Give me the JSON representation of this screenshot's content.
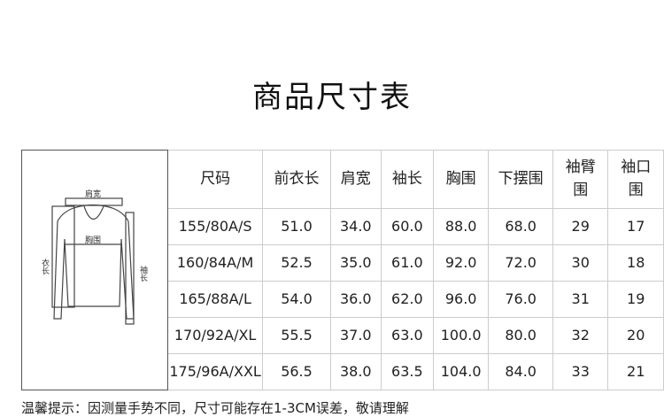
{
  "title": "商品尺寸表",
  "diagram": {
    "labels": {
      "shoulder": "肩宽",
      "chest": "胸围",
      "length": "衣长",
      "sleeve": "袖长"
    }
  },
  "table": {
    "headers": [
      "尺码",
      "前衣长",
      "肩宽",
      "袖长",
      "胸围",
      "下摆围",
      "袖臂围",
      "袖口围"
    ],
    "rows": [
      [
        "155/80A/S",
        "51.0",
        "34.0",
        "60.0",
        "88.0",
        "68.0",
        "29",
        "17"
      ],
      [
        "160/84A/M",
        "52.5",
        "35.0",
        "61.0",
        "92.0",
        "72.0",
        "30",
        "18"
      ],
      [
        "165/88A/L",
        "54.0",
        "36.0",
        "62.0",
        "96.0",
        "76.0",
        "31",
        "19"
      ],
      [
        "170/92A/XL",
        "55.5",
        "37.0",
        "63.0",
        "100.0",
        "80.0",
        "32",
        "20"
      ],
      [
        "175/96A/XXL",
        "56.5",
        "38.0",
        "63.5",
        "104.0",
        "84.0",
        "33",
        "21"
      ]
    ]
  },
  "note": "温馨提示：因测量手势不同，尺寸可能存在1-3CM误差，敬请理解"
}
